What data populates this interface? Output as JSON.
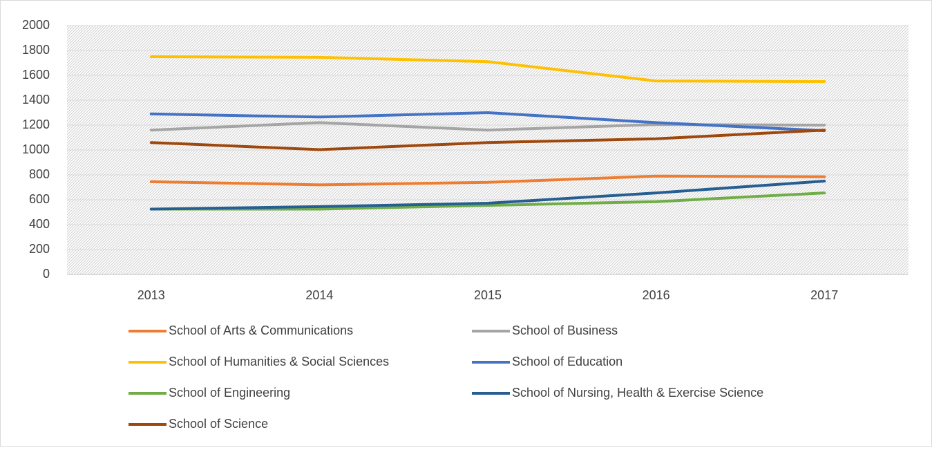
{
  "chart_data": {
    "type": "line",
    "categories": [
      "2013",
      "2014",
      "2015",
      "2016",
      "2017"
    ],
    "series": [
      {
        "name": "School of Arts & Communications",
        "color": "#ed7d31",
        "values": [
          745,
          720,
          740,
          790,
          785
        ]
      },
      {
        "name": "School of Business",
        "color": "#a5a5a5",
        "values": [
          1160,
          1220,
          1160,
          1205,
          1200
        ]
      },
      {
        "name": "School of Humanities & Social Sciences",
        "color": "#ffc000",
        "values": [
          1750,
          1745,
          1710,
          1555,
          1550
        ]
      },
      {
        "name": "School of Education",
        "color": "#4472c4",
        "values": [
          1290,
          1265,
          1300,
          1220,
          1155
        ]
      },
      {
        "name": "School of Engineering",
        "color": "#70ad47",
        "values": [
          525,
          525,
          555,
          585,
          655
        ]
      },
      {
        "name": "School of Nursing, Health & Exercise Science",
        "color": "#255e91",
        "values": [
          525,
          545,
          572,
          655,
          750
        ]
      },
      {
        "name": "School of Science",
        "color": "#9e480e",
        "values": [
          1060,
          1003,
          1060,
          1090,
          1160
        ]
      }
    ],
    "ylim": [
      0,
      2000
    ],
    "yticks": [
      0,
      200,
      400,
      600,
      800,
      1000,
      1200,
      1400,
      1600,
      1800,
      2000
    ],
    "grid": true,
    "legend": "bottom"
  }
}
